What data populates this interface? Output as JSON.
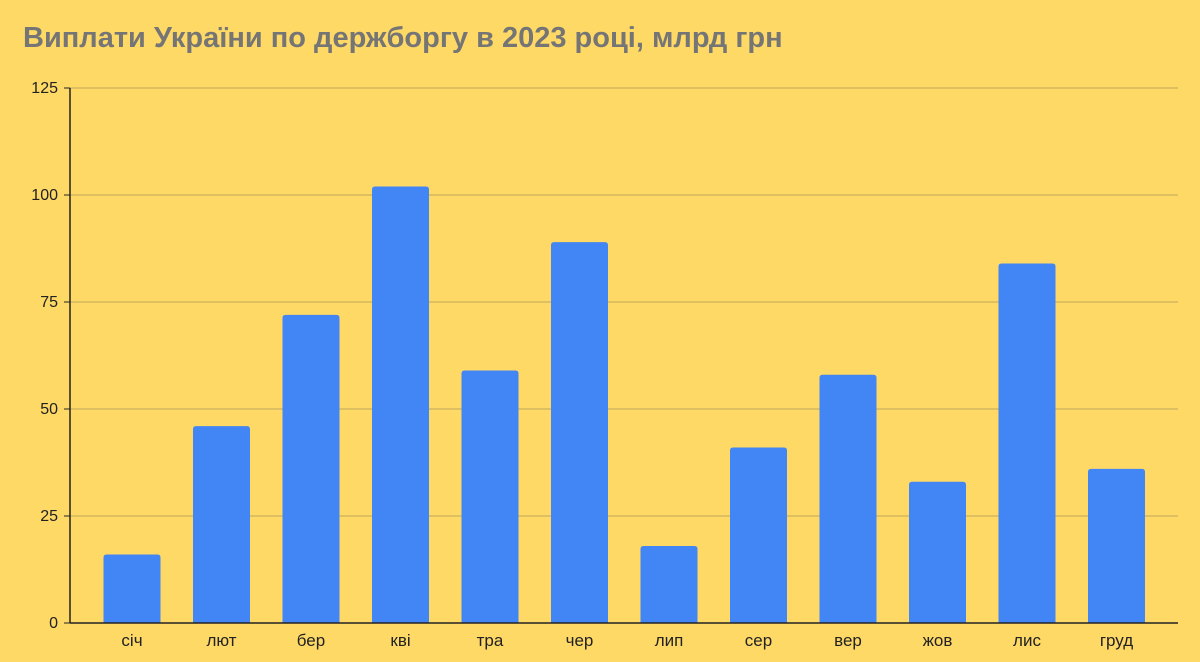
{
  "chart_data": {
    "type": "bar",
    "title": "Виплати України по держборгу в 2023 році, млрд грн",
    "xlabel": "",
    "ylabel": "",
    "categories": [
      "січ",
      "лют",
      "бер",
      "кві",
      "тра",
      "чер",
      "лип",
      "сер",
      "вер",
      "жов",
      "лис",
      "груд"
    ],
    "values": [
      16,
      46,
      72,
      102,
      59,
      89,
      18,
      41,
      58,
      33,
      84,
      36
    ],
    "ylim": [
      0,
      125
    ],
    "yticks": [
      0,
      25,
      50,
      75,
      100,
      125
    ],
    "grid": true,
    "legend": "none",
    "colors": {
      "background": "#ffd966",
      "bar": "#4285f4",
      "grid": "#bca75a",
      "axis": "#222222",
      "title": "#757575"
    }
  }
}
